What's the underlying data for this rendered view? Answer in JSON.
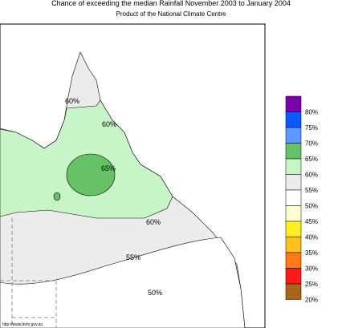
{
  "header": {
    "title": "Chance of exceeding the median Rainfall November 2003 to January 2004",
    "subtitle": "Product of the National Climate Centre"
  },
  "map": {
    "contour_labels": [
      "60%",
      "60%",
      "65%",
      "60%",
      "55%",
      "50%"
    ],
    "url": "http://www.bom.gov.au"
  },
  "legend": {
    "colors": [
      "#7a00a8",
      "#0a5aff",
      "#5a9aff",
      "#66c266",
      "#c8f5c8",
      "#ececec",
      "#ffffff",
      "#ffffd0",
      "#ffee22",
      "#ffc020",
      "#ff7a1a",
      "#ff1a1a",
      "#a8661a"
    ],
    "labels": [
      "80%",
      "75%",
      "70%",
      "65%",
      "60%",
      "55%",
      "50%",
      "45%",
      "40%",
      "35%",
      "30%",
      "25%",
      "20%"
    ]
  }
}
